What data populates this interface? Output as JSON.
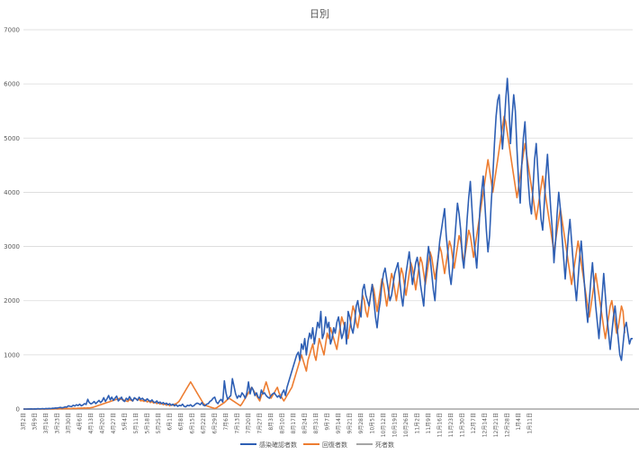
{
  "chart_data": {
    "type": "line",
    "title": "日別",
    "xlabel": "",
    "ylabel": "",
    "ylim": [
      0,
      7000
    ],
    "y_ticks": [
      0,
      1000,
      2000,
      3000,
      4000,
      5000,
      6000,
      7000
    ],
    "grid": true,
    "legend_position": "bottom",
    "x_tick_labels": [
      "3月2日",
      "3月9日",
      "3月16日",
      "3月23日",
      "3月30日",
      "4月6日",
      "4月13日",
      "4月20日",
      "4月27日",
      "5月4日",
      "5月11日",
      "5月18日",
      "5月25日",
      "6月1日",
      "6月8日",
      "6月15日",
      "6月22日",
      "6月29日",
      "7月6日",
      "7月13日",
      "7月20日",
      "7月27日",
      "8月3日",
      "8月10日",
      "8月17日",
      "8月24日",
      "8月31日",
      "9月7日",
      "9月14日",
      "9月21日",
      "9月28日",
      "10月5日",
      "10月12日",
      "10月19日",
      "10月26日",
      "11月2日",
      "11月9日",
      "11月16日",
      "11月23日",
      "11月30日",
      "12月7日",
      "12月14日",
      "12月21日",
      "12月28日",
      "1月4日",
      "1月11日"
    ],
    "x_days_per_tick": 7,
    "series": [
      {
        "name": "感染確認者数",
        "color": "#2e5fb4",
        "values": [
          0,
          0,
          0,
          2,
          1,
          3,
          0,
          4,
          2,
          6,
          3,
          5,
          8,
          4,
          10,
          6,
          12,
          9,
          15,
          14,
          20,
          18,
          25,
          30,
          22,
          28,
          40,
          35,
          60,
          50,
          45,
          70,
          55,
          80,
          65,
          90,
          60,
          75,
          100,
          85,
          180,
          120,
          95,
          110,
          140,
          100,
          130,
          160,
          120,
          150,
          210,
          140,
          190,
          250,
          170,
          220,
          160,
          200,
          240,
          150,
          180,
          220,
          160,
          140,
          200,
          170,
          230,
          180,
          150,
          210,
          190,
          160,
          220,
          180,
          200,
          170,
          150,
          190,
          160,
          140,
          170,
          130,
          120,
          150,
          110,
          130,
          100,
          120,
          90,
          110,
          80,
          100,
          70,
          90,
          60,
          80,
          50,
          70,
          60,
          90,
          50,
          40,
          70,
          60,
          80,
          50,
          60,
          90,
          110,
          100,
          80,
          120,
          70,
          60,
          90,
          100,
          140,
          160,
          200,
          220,
          130,
          100,
          150,
          180,
          130,
          520,
          300,
          180,
          220,
          250,
          560,
          420,
          280,
          200,
          250,
          220,
          300,
          260,
          200,
          300,
          500,
          280,
          400,
          350,
          250,
          300,
          220,
          200,
          350,
          280,
          300,
          250,
          220,
          200,
          250,
          280,
          300,
          260,
          220,
          250,
          200,
          300,
          350,
          250,
          400,
          500,
          600,
          700,
          800,
          900,
          1000,
          1050,
          900,
          1200,
          1100,
          1300,
          1000,
          1250,
          1400,
          1300,
          1500,
          1200,
          1400,
          1600,
          1500,
          1800,
          1300,
          1400,
          1700,
          1500,
          1600,
          1200,
          1300,
          1500,
          1400,
          1600,
          1700,
          1500,
          1300,
          1400,
          1600,
          1200,
          1800,
          1700,
          1500,
          1400,
          1600,
          1900,
          2000,
          1800,
          1700,
          2200,
          2300,
          2100,
          2000,
          1900,
          2100,
          2300,
          2000,
          1700,
          1500,
          1800,
          2000,
          2300,
          2500,
          2600,
          2400,
          2200,
          2000,
          2100,
          2300,
          2500,
          2600,
          2700,
          2400,
          2100,
          1900,
          2200,
          2500,
          2700,
          2900,
          2600,
          2300,
          2500,
          2700,
          2800,
          2600,
          2300,
          2100,
          1900,
          2400,
          2700,
          3000,
          2800,
          2500,
          2200,
          2000,
          2500,
          2800,
          3100,
          3300,
          3500,
          3700,
          3200,
          2900,
          2500,
          2300,
          2600,
          3000,
          3400,
          3800,
          3600,
          3300,
          2800,
          2600,
          3000,
          3500,
          3900,
          4200,
          3700,
          3200,
          2900,
          2600,
          3100,
          3700,
          4000,
          4300,
          3800,
          3300,
          2900,
          3200,
          3800,
          4300,
          4900,
          5400,
          5700,
          5800,
          5300,
          4800,
          5200,
          5700,
          6100,
          5600,
          4900,
          5400,
          5800,
          5500,
          4800,
          4200,
          3800,
          4500,
          5000,
          5300,
          4700,
          4200,
          3800,
          3600,
          4100,
          4600,
          4900,
          4400,
          3900,
          3500,
          3300,
          3800,
          4300,
          4700,
          4200,
          3700,
          3300,
          2700,
          3100,
          3600,
          4000,
          3700,
          3200,
          2800,
          2400,
          2800,
          3200,
          3500,
          3100,
          2700,
          2300,
          2000,
          2400,
          2800,
          3100,
          2700,
          2300,
          1900,
          1600,
          2000,
          2400,
          2700,
          2300,
          1900,
          1600,
          1300,
          1700,
          2100,
          2500,
          2100,
          1700,
          1400,
          1100,
          1400,
          1700,
          1900,
          1600,
          1300,
          1000,
          900,
          1200,
          1500,
          1600,
          1400,
          1200,
          1300,
          1300
        ]
      },
      {
        "name": "回復者数",
        "color": "#ed7d31",
        "values": [
          0,
          0,
          0,
          0,
          1,
          0,
          2,
          1,
          0,
          3,
          1,
          2,
          0,
          4,
          2,
          1,
          3,
          5,
          2,
          4,
          6,
          3,
          5,
          8,
          4,
          7,
          10,
          6,
          12,
          9,
          8,
          14,
          11,
          10,
          16,
          13,
          18,
          15,
          20,
          17,
          22,
          19,
          25,
          30,
          40,
          50,
          60,
          70,
          80,
          90,
          100,
          110,
          120,
          130,
          140,
          150,
          160,
          170,
          180,
          190,
          200,
          180,
          170,
          160,
          150,
          140,
          180,
          160,
          150,
          200,
          190,
          170,
          180,
          150,
          160,
          140,
          170,
          130,
          150,
          120,
          140,
          110,
          130,
          100,
          120,
          90,
          110,
          80,
          100,
          70,
          90,
          60,
          80,
          70,
          90,
          100,
          120,
          150,
          200,
          250,
          300,
          350,
          400,
          450,
          500,
          450,
          400,
          350,
          300,
          250,
          200,
          150,
          100,
          80,
          60,
          50,
          40,
          30,
          20,
          10,
          20,
          40,
          60,
          80,
          100,
          120,
          150,
          180,
          200,
          180,
          160,
          140,
          120,
          100,
          80,
          60,
          100,
          150,
          200,
          250,
          300,
          350,
          400,
          350,
          300,
          250,
          200,
          150,
          250,
          300,
          400,
          500,
          400,
          300,
          200,
          250,
          300,
          350,
          400,
          300,
          250,
          200,
          150,
          200,
          250,
          300,
          350,
          400,
          500,
          600,
          700,
          800,
          900,
          1000,
          900,
          800,
          700,
          900,
          1000,
          1100,
          1200,
          1000,
          900,
          1100,
          1300,
          1200,
          1100,
          1000,
          1200,
          1400,
          1300,
          1500,
          1400,
          1300,
          1200,
          1100,
          1300,
          1500,
          1700,
          1600,
          1500,
          1400,
          1300,
          1500,
          1700,
          1900,
          1800,
          1600,
          1500,
          1700,
          1900,
          2100,
          2000,
          1800,
          1700,
          1900,
          2100,
          2300,
          2200,
          2000,
          1800,
          2000,
          2200,
          2400,
          2300,
          2100,
          1900,
          2100,
          2300,
          2500,
          2400,
          2200,
          2000,
          2200,
          2400,
          2600,
          2500,
          2300,
          2100,
          2300,
          2500,
          2700,
          2600,
          2400,
          2200,
          2400,
          2600,
          2800,
          2700,
          2500,
          2300,
          2500,
          2700,
          2900,
          2800,
          2600,
          2400,
          2600,
          2800,
          3000,
          2900,
          2700,
          2500,
          2700,
          2900,
          3100,
          3000,
          2800,
          2600,
          2800,
          3000,
          3200,
          3100,
          2900,
          2700,
          2900,
          3100,
          3300,
          3200,
          3000,
          2800,
          3000,
          3200,
          3400,
          3600,
          3800,
          4000,
          4200,
          4400,
          4600,
          4400,
          4200,
          4000,
          4200,
          4400,
          4600,
          4800,
          5000,
          5200,
          5400,
          5300,
          5100,
          4900,
          4700,
          4500,
          4300,
          4100,
          3900,
          4100,
          4300,
          4500,
          4700,
          4900,
          4700,
          4500,
          4300,
          4100,
          3900,
          3700,
          3500,
          3700,
          3900,
          4100,
          4300,
          4100,
          3900,
          3700,
          3500,
          3300,
          3100,
          2900,
          3100,
          3300,
          3500,
          3700,
          3500,
          3300,
          3100,
          2900,
          2700,
          2500,
          2300,
          2500,
          2700,
          2900,
          3100,
          2900,
          2700,
          2500,
          2300,
          2100,
          1900,
          1700,
          1900,
          2100,
          2300,
          2500,
          2300,
          2100,
          1900,
          1700,
          1500,
          1300,
          1500,
          1700,
          1900,
          2000,
          1800,
          1600,
          1400,
          1500,
          1700,
          1900,
          1800,
          1400
        ]
      },
      {
        "name": "死者数",
        "color": "#a5a5a5",
        "values": [
          0,
          0,
          0,
          0,
          0,
          0,
          0,
          0,
          0,
          0,
          0,
          0,
          0,
          0,
          0,
          0,
          0,
          0,
          0,
          0,
          0,
          0,
          0,
          0,
          0,
          0,
          0,
          0,
          0,
          0,
          0,
          0,
          0,
          0,
          0,
          0,
          0,
          0,
          0,
          0,
          0,
          0,
          0,
          0,
          0,
          0,
          0,
          0,
          0,
          0,
          0,
          0,
          0,
          0,
          0,
          0,
          0,
          0,
          0,
          0,
          0,
          0,
          0,
          0,
          0,
          0,
          0,
          0,
          0,
          0,
          0,
          0,
          0,
          0,
          0,
          0,
          0,
          0,
          0,
          0,
          0,
          0,
          0,
          0,
          0,
          0,
          0,
          0,
          0,
          0,
          0,
          0,
          0,
          0,
          0,
          0,
          0,
          0,
          0,
          0,
          0,
          0,
          0,
          0,
          0,
          0,
          0,
          0,
          0,
          0,
          0,
          0,
          0,
          0,
          0,
          0,
          0,
          0,
          0,
          0,
          0,
          0,
          0,
          0,
          0,
          0,
          0,
          0,
          0,
          0,
          0,
          0,
          0,
          0,
          0,
          0,
          0,
          0,
          0,
          0,
          0,
          0,
          0,
          0,
          0,
          0,
          0,
          0,
          0,
          0,
          0,
          0,
          0,
          0,
          0,
          0,
          0,
          0,
          0,
          0,
          0,
          0,
          0,
          0,
          0,
          0,
          0,
          0,
          0,
          0,
          0,
          0,
          0,
          0,
          0,
          0,
          0,
          0,
          0,
          0,
          0,
          0,
          0,
          0,
          0,
          0,
          0,
          0,
          0,
          0,
          0,
          0,
          0,
          0,
          0,
          0,
          0,
          0,
          0,
          0,
          0,
          0,
          0,
          0,
          0,
          0,
          0,
          0,
          0,
          0,
          0,
          0,
          0,
          0,
          0,
          0,
          0,
          0,
          0,
          0,
          0,
          0,
          0,
          0,
          0,
          0,
          0,
          0,
          0,
          0,
          0,
          0,
          0,
          0,
          0,
          0,
          0,
          0,
          0,
          0,
          0,
          0,
          0,
          0,
          0,
          0,
          0,
          0,
          0,
          0,
          0,
          0,
          0,
          0,
          0,
          0,
          0,
          0,
          0,
          0,
          0,
          0,
          0,
          0,
          0,
          0,
          0,
          0,
          0,
          0,
          0,
          0,
          0,
          0,
          0,
          0,
          0,
          0,
          0,
          0,
          0,
          0,
          0,
          0,
          0,
          0,
          0,
          0,
          0,
          0,
          0,
          0,
          0,
          0,
          0,
          0,
          0,
          0,
          0,
          0,
          0,
          0,
          0,
          0,
          0,
          0,
          0,
          0,
          0,
          0,
          0,
          0,
          0,
          0,
          0,
          0,
          0,
          0,
          0,
          0,
          0,
          0,
          0,
          0,
          0,
          0,
          0,
          0,
          0,
          0,
          0,
          0,
          0,
          0,
          0,
          0,
          0,
          0,
          0,
          0,
          0,
          0,
          0,
          0,
          0,
          0,
          0,
          0,
          0,
          0,
          0,
          0,
          0,
          0,
          0,
          0,
          0,
          0,
          0,
          0,
          0,
          0,
          0,
          0,
          0,
          0,
          0,
          0,
          0,
          0,
          0,
          0,
          0,
          0,
          0,
          0,
          0,
          0,
          0,
          0,
          0,
          0,
          0,
          0,
          0,
          0,
          0,
          0,
          0,
          0,
          0,
          0,
          0,
          0,
          0,
          0,
          0,
          0,
          0,
          0,
          0,
          0,
          0,
          0,
          0,
          0,
          0,
          0,
          0,
          0,
          0,
          0,
          0,
          0,
          0,
          0,
          0,
          0,
          0,
          0,
          0,
          0
        ]
      }
    ]
  }
}
